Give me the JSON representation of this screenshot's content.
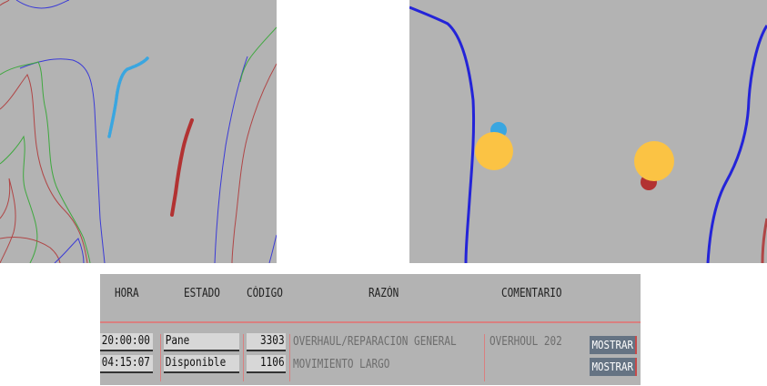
{
  "colors": {
    "map_bg": "#b3b3b3",
    "contour_blue": "#3b3bd6",
    "contour_red": "#b04646",
    "contour_green": "#3fa83f",
    "track_blue": "#3aa6e0",
    "track_red": "#b23232",
    "marker_yellow": "#fbc344",
    "header_rule": "#d98080",
    "button_bg": "#657383"
  },
  "table": {
    "headers": {
      "hora": "HORA",
      "estado": "ESTADO",
      "codigo": "CÓDIGO",
      "razon": "RAZÓN",
      "comentario": "COMENTARIO"
    },
    "rows": [
      {
        "hora": "20:00:00",
        "estado": "Pane",
        "codigo": "3303",
        "razon": "OVERHAUL/REPARACION GENERAL",
        "comentario": "OVERHOUL 202",
        "action": "MOSTRAR"
      },
      {
        "hora": "04:15:07",
        "estado": "Disponible",
        "codigo": "1106",
        "razon": "MOVIMIENTO LARGO",
        "comentario": "",
        "action": "MOSTRAR"
      }
    ]
  }
}
